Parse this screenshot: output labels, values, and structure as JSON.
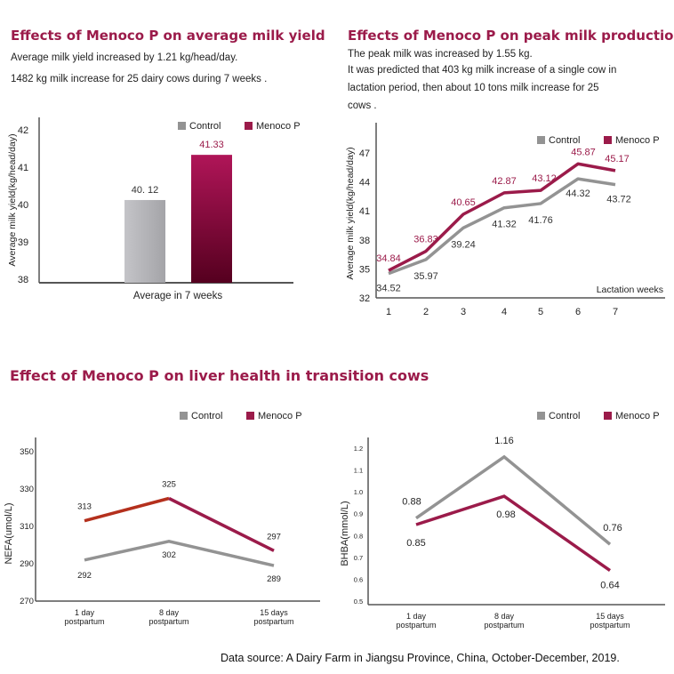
{
  "texts": {
    "title_avg": "Effects of Menoco P on average milk yield",
    "avg_line1": "Average milk yield increased  by 1.21 kg/head/day.",
    "avg_line2": "1482 kg milk increase for 25 dairy cows  during 7 weeks .",
    "title_peak": "Effects of Menoco P on peak milk production",
    "peak_line1": "The peak milk was increased by 1.55 kg.",
    "peak_line2": "It was predicted that 403 kg milk increase of a single cow in",
    "peak_line3": "lactation period, then   about 10 tons milk increase for  25",
    "peak_line4": "cows .",
    "title_liver": "Effect of Menoco P on liver health in transition cows",
    "source": "Data source: A Dairy Farm in Jiangsu Province, China, October-December, 2019."
  },
  "colors": {
    "control": "#939393",
    "menoco": "#9b1b4a",
    "menoco_bar_top": "#b01558",
    "menoco_bar_bottom": "#55001f",
    "nefa_highlight": "#b4301d",
    "axis": "#555555"
  },
  "chart_data": [
    {
      "type": "bar",
      "ylabel": "Average milk yield(kg/head/day)",
      "xlabel": "Average in 7 weeks",
      "ylim": [
        38,
        42
      ],
      "yticks": [
        "38",
        "39",
        "40",
        "41",
        "42"
      ],
      "legend": {
        "position": "top-right",
        "items": [
          "Control",
          "Menoco P"
        ]
      },
      "series": [
        {
          "name": "Control",
          "value": 40.12,
          "label": "40. 12"
        },
        {
          "name": "Menoco P",
          "value": 41.33,
          "label": "41.33"
        }
      ]
    },
    {
      "type": "line",
      "ylabel": "Average milk yield(kg/head/day)",
      "xlabel": "Lactation weeks",
      "ylim": [
        32,
        47
      ],
      "yticks": [
        "32",
        "35",
        "38",
        "41",
        "44",
        "47"
      ],
      "x": [
        "1",
        "2",
        "3",
        "4",
        "5",
        "6",
        "7"
      ],
      "legend": {
        "position": "top-right",
        "items": [
          "Control",
          "Menoco P"
        ]
      },
      "series": [
        {
          "name": "Control",
          "values": [
            34.52,
            35.97,
            39.24,
            41.32,
            41.76,
            44.32,
            43.72
          ],
          "labels": [
            "34.52",
            "35.97",
            "39.24",
            "41.32",
            "41.76",
            "44.32",
            "43.72"
          ]
        },
        {
          "name": "Menoco P",
          "values": [
            34.84,
            36.83,
            40.65,
            42.87,
            43.12,
            45.87,
            45.17
          ],
          "labels": [
            "34.84",
            "36.83",
            "40.65",
            "42.87",
            "43.12",
            "45.87",
            "45.17"
          ]
        }
      ]
    },
    {
      "type": "line",
      "ylabel": "NEFA(umol/L)",
      "ylim": [
        270,
        350
      ],
      "yticks": [
        "270",
        "290",
        "310",
        "330",
        "350"
      ],
      "x": [
        "1 day|postpartum",
        "8 day|postpartum",
        "15 days|postpartum"
      ],
      "legend": {
        "position": "top-right",
        "items": [
          "Control",
          "Menoco P"
        ]
      },
      "series": [
        {
          "name": "Control",
          "values": [
            292,
            302,
            289
          ],
          "labels": [
            "292",
            "302",
            "289"
          ]
        },
        {
          "name": "Menoco P",
          "values": [
            313,
            325,
            297
          ],
          "labels": [
            "313",
            "325",
            "297"
          ]
        }
      ]
    },
    {
      "type": "line",
      "ylabel": "BHBA(mmol/L)",
      "ylim": [
        0.5,
        1.2
      ],
      "yticks": [
        "0.5",
        "0.6",
        "0.7",
        "0.8",
        "0.9",
        "1.0",
        "1.1",
        "1.2"
      ],
      "x": [
        "1 day|postpartum",
        "8 day|postpartum",
        "15 days|postpartum"
      ],
      "legend": {
        "position": "top-right",
        "items": [
          "Control",
          "Menoco P"
        ]
      },
      "series": [
        {
          "name": "Control",
          "values": [
            0.88,
            1.16,
            0.76
          ],
          "labels": [
            "0.88",
            "1.16",
            "0.76"
          ]
        },
        {
          "name": "Menoco P",
          "values": [
            0.85,
            0.98,
            0.64
          ],
          "labels": [
            "0.85",
            "0.98",
            "0.64"
          ]
        }
      ]
    }
  ]
}
